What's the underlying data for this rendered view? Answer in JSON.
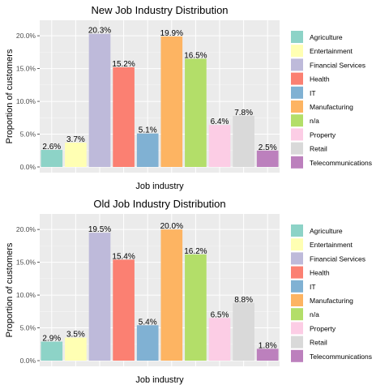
{
  "chart_data": [
    {
      "type": "bar",
      "title": "New Job Industry Distribution",
      "xlabel": "Job industry",
      "ylabel": "Proportion of customers",
      "ylim": [
        0,
        21.5
      ],
      "yticks": [
        "0.0%",
        "5.0%",
        "10.0%",
        "15.0%",
        "20.0%"
      ],
      "ytick_values": [
        0,
        5,
        10,
        15,
        20
      ],
      "grid": true,
      "legend_position": "right",
      "categories": [
        "Agriculture",
        "Entertainment",
        "Financial Services",
        "Health",
        "IT",
        "Manufacturing",
        "n/a",
        "Property",
        "Retail",
        "Telecommunications"
      ],
      "values": [
        2.6,
        3.7,
        20.3,
        15.2,
        5.1,
        19.9,
        16.5,
        6.4,
        7.8,
        2.5
      ],
      "labels": [
        "2.6%",
        "3.7%",
        "20.3%",
        "15.2%",
        "5.1%",
        "19.9%",
        "16.5%",
        "6.4%",
        "7.8%",
        "2.5%"
      ],
      "colors": [
        "#8DD3C7",
        "#FFFFB3",
        "#BEBADA",
        "#FB8072",
        "#80B1D3",
        "#FDB462",
        "#B3DE69",
        "#FCCDE5",
        "#D9D9D9",
        "#BC80BD"
      ]
    },
    {
      "type": "bar",
      "title": "Old Job Industry Distribution",
      "xlabel": "Job industry",
      "ylabel": "Proportion of customers",
      "ylim": [
        0,
        21.5
      ],
      "yticks": [
        "0.0%",
        "5.0%",
        "10.0%",
        "15.0%",
        "20.0%"
      ],
      "ytick_values": [
        0,
        5,
        10,
        15,
        20
      ],
      "grid": true,
      "legend_position": "right",
      "categories": [
        "Agriculture",
        "Entertainment",
        "Financial Services",
        "Health",
        "IT",
        "Manufacturing",
        "n/a",
        "Property",
        "Retail",
        "Telecommunications"
      ],
      "values": [
        2.9,
        3.5,
        19.5,
        15.4,
        5.4,
        20.0,
        16.2,
        6.5,
        8.8,
        1.8
      ],
      "labels": [
        "2.9%",
        "3.5%",
        "19.5%",
        "15.4%",
        "5.4%",
        "20.0%",
        "16.2%",
        "6.5%",
        "8.8%",
        "1.8%"
      ],
      "colors": [
        "#8DD3C7",
        "#FFFFB3",
        "#BEBADA",
        "#FB8072",
        "#80B1D3",
        "#FDB462",
        "#B3DE69",
        "#FCCDE5",
        "#D9D9D9",
        "#BC80BD"
      ]
    }
  ]
}
